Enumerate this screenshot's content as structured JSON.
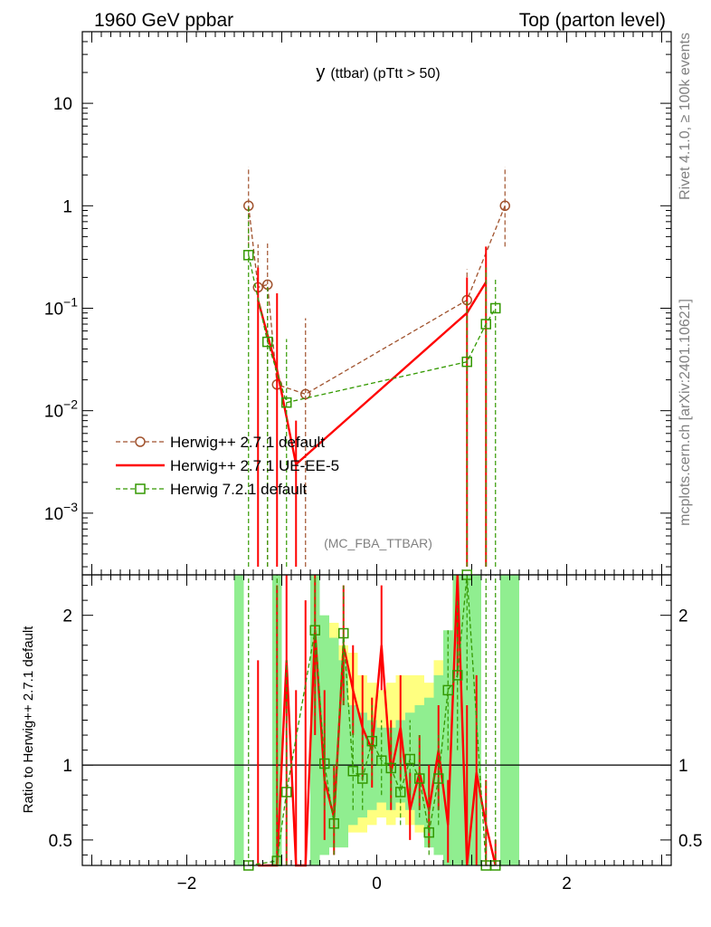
{
  "header": {
    "left": "1960 GeV ppbar",
    "right": "Top (parton level)"
  },
  "side_text": {
    "rivet": "Rivet 4.1.0, ≥ 100k events",
    "mcplots": "mcplots.cern.ch [arXiv:2401.10621]"
  },
  "chart_data": [
    {
      "type": "line",
      "title_main": "y",
      "title_sub": "(ttbar) (pTtt > 50)",
      "watermark": "(MC_FBA_TTBAR)",
      "xlabel": "",
      "ylabel": "",
      "yscale": "log",
      "xlim": [
        -3.1,
        3.1
      ],
      "ylim": [
        0.00025,
        50
      ],
      "x_ticks": [
        -2,
        0,
        2
      ],
      "y_ticks": [
        {
          "value": 10,
          "label": "10"
        },
        {
          "value": 1,
          "label": "1"
        },
        {
          "value": 0.1,
          "label": "10",
          "sup": "−1"
        },
        {
          "value": 0.01,
          "label": "10",
          "sup": "−2"
        },
        {
          "value": 0.001,
          "label": "10",
          "sup": "−3"
        }
      ],
      "legend_position": "left",
      "series": [
        {
          "name": "Herwig++ 2.7.1 default",
          "color": "#a0522d",
          "dash": "dashed",
          "marker": "open-circle",
          "points": [
            {
              "x": -1.35,
              "y": 1.0,
              "err": [
                0.4,
                2.4
              ]
            },
            {
              "x": -1.25,
              "y": 0.16,
              "err": [
                0.0003,
                0.42
              ]
            },
            {
              "x": -1.15,
              "y": 0.17,
              "err": [
                0.0003,
                0.45
              ]
            },
            {
              "x": -1.05,
              "y": 0.018,
              "err": [
                0.0003,
                0.05
              ]
            },
            {
              "x": -0.75,
              "y": 0.0145,
              "err": [
                0.0003,
                0.08
              ]
            },
            {
              "x": 0.95,
              "y": 0.12,
              "err": [
                0.0003,
                0.24
              ]
            },
            {
              "x": 1.35,
              "y": 1.0,
              "err": [
                0.4,
                2.4
              ]
            }
          ]
        },
        {
          "name": "Herwig++ 2.7.1 UE-EE-5",
          "color": "#ff0000",
          "dash": "solid",
          "marker": "none",
          "points": [
            {
              "x": -1.25,
              "y": 0.12,
              "err": [
                0.0003,
                0.25
              ]
            },
            {
              "x": -1.05,
              "y": 0.025,
              "err": [
                0.0003,
                0.14
              ]
            },
            {
              "x": -0.85,
              "y": 0.003,
              "err": [
                0.0003,
                0.008
              ]
            },
            {
              "x": 0.95,
              "y": 0.09,
              "err": [
                0.0003,
                0.2
              ]
            },
            {
              "x": 1.15,
              "y": 0.18,
              "err": [
                0.0003,
                0.4
              ]
            }
          ]
        },
        {
          "name": "Herwig 7.2.1 default",
          "color": "#339900",
          "dash": "dashed",
          "marker": "open-square",
          "points": [
            {
              "x": -1.35,
              "y": 0.33,
              "err": [
                0.0003,
                1.0
              ]
            },
            {
              "x": -1.15,
              "y": 0.047,
              "err": [
                0.0003,
                0.16
              ]
            },
            {
              "x": -0.95,
              "y": 0.012,
              "err": [
                0.0003,
                0.05
              ]
            },
            {
              "x": 0.95,
              "y": 0.03,
              "err": [
                0.0003,
                0.12
              ]
            },
            {
              "x": 1.15,
              "y": 0.07,
              "err": [
                0.0003,
                0.25
              ]
            },
            {
              "x": 1.25,
              "y": 0.1,
              "err": [
                0.0003,
                0.2
              ]
            }
          ]
        }
      ]
    },
    {
      "type": "line",
      "ylabel": "Ratio to Herwig++ 2.7.1 default",
      "xlim": [
        -3.1,
        3.1
      ],
      "ylim": [
        0.33,
        2.27
      ],
      "x_ticks": [
        -2,
        0,
        2
      ],
      "y_ticks": [
        {
          "value": 0.5,
          "label": "0.5"
        },
        {
          "value": 1,
          "label": "1"
        },
        {
          "value": 2,
          "label": "2"
        }
      ],
      "reference_line": 1,
      "bands": [
        {
          "name": "yellow",
          "color": "#ffff80",
          "bins": [
            [
              -1.5,
              0.33,
              2.27
            ],
            [
              -1.1,
              0.33,
              2.27
            ],
            [
              -0.7,
              0.4,
              2.1
            ],
            [
              -0.6,
              0.45,
              1.95
            ],
            [
              -0.5,
              0.5,
              1.95
            ],
            [
              -0.4,
              0.5,
              1.8
            ],
            [
              -0.3,
              0.55,
              1.75
            ],
            [
              -0.2,
              0.55,
              1.6
            ],
            [
              -0.1,
              0.6,
              1.55
            ],
            [
              0.0,
              0.65,
              1.5
            ],
            [
              0.1,
              0.6,
              1.55
            ],
            [
              0.2,
              0.65,
              1.6
            ],
            [
              0.3,
              0.6,
              1.6
            ],
            [
              0.4,
              0.55,
              1.6
            ],
            [
              0.5,
              0.5,
              1.55
            ],
            [
              0.6,
              0.5,
              1.7
            ],
            [
              0.7,
              0.45,
              1.8
            ],
            [
              0.8,
              0.4,
              2.0
            ],
            [
              0.9,
              0.33,
              2.27
            ],
            [
              1.4,
              0.33,
              2.27
            ]
          ]
        },
        {
          "name": "green",
          "color": "#90ee90",
          "bins": [
            [
              -1.5,
              0.33,
              2.27
            ],
            [
              -1.1,
              0.33,
              2.27
            ],
            [
              -0.7,
              0.33,
              2.27
            ],
            [
              -0.6,
              0.4,
              2.0
            ],
            [
              -0.5,
              0.45,
              1.85
            ],
            [
              -0.4,
              0.45,
              1.7
            ],
            [
              -0.3,
              0.6,
              1.4
            ],
            [
              -0.2,
              0.65,
              1.35
            ],
            [
              -0.1,
              0.7,
              1.3
            ],
            [
              0.0,
              0.75,
              1.25
            ],
            [
              0.1,
              0.7,
              1.25
            ],
            [
              0.2,
              0.75,
              1.3
            ],
            [
              0.3,
              0.7,
              1.35
            ],
            [
              0.4,
              0.6,
              1.4
            ],
            [
              0.5,
              0.45,
              1.45
            ],
            [
              0.6,
              0.4,
              1.6
            ],
            [
              0.7,
              0.33,
              1.9
            ],
            [
              0.8,
              0.33,
              2.27
            ],
            [
              0.9,
              0.33,
              2.27
            ],
            [
              1.0,
              0.33,
              2.27
            ],
            [
              1.3,
              0.33,
              2.27
            ],
            [
              1.4,
              0.33,
              2.27
            ]
          ]
        }
      ],
      "series": [
        {
          "name": "Herwig++ 2.7.1 UE-EE-5",
          "color": "#ff0000",
          "dash": "solid",
          "marker": "none",
          "points": [
            {
              "x": -1.25,
              "y": 0.32,
              "err": [
                0.3,
                1.7
              ]
            },
            {
              "x": -1.05,
              "y": 0.32,
              "err": [
                0.3,
                2.2
              ]
            },
            {
              "x": -0.95,
              "y": 1.7,
              "err": [
                0.3,
                2.27
              ]
            },
            {
              "x": -0.85,
              "y": 0.32,
              "err": [
                0.3,
                1.5
              ]
            },
            {
              "x": -0.75,
              "y": 0.32,
              "err": [
                0.3,
                2.1
              ]
            },
            {
              "x": -0.65,
              "y": 1.9,
              "err": [
                1.2,
                2.27
              ]
            },
            {
              "x": -0.55,
              "y": 0.9,
              "err": [
                0.5,
                1.5
              ]
            },
            {
              "x": -0.45,
              "y": 0.65,
              "err": [
                0.4,
                1.0
              ]
            },
            {
              "x": -0.35,
              "y": 1.8,
              "err": [
                1.4,
                2.2
              ]
            },
            {
              "x": -0.25,
              "y": 1.5,
              "err": [
                1.2,
                1.8
              ]
            },
            {
              "x": -0.15,
              "y": 1.25,
              "err": [
                0.9,
                1.6
              ]
            },
            {
              "x": -0.05,
              "y": 1.1,
              "err": [
                0.85,
                1.45
              ]
            },
            {
              "x": 0.05,
              "y": 1.8,
              "err": [
                1.5,
                2.2
              ]
            },
            {
              "x": 0.15,
              "y": 0.95,
              "err": [
                0.7,
                1.3
              ]
            },
            {
              "x": 0.25,
              "y": 1.25,
              "err": [
                0.9,
                1.6
              ]
            },
            {
              "x": 0.35,
              "y": 0.7,
              "err": [
                0.5,
                0.95
              ]
            },
            {
              "x": 0.45,
              "y": 0.95,
              "err": [
                0.7,
                1.2
              ]
            },
            {
              "x": 0.55,
              "y": 0.7,
              "err": [
                0.45,
                1.0
              ]
            },
            {
              "x": 0.65,
              "y": 1.1,
              "err": [
                0.7,
                1.4
              ]
            },
            {
              "x": 0.75,
              "y": 0.6,
              "err": [
                0.35,
                0.9
              ]
            },
            {
              "x": 0.85,
              "y": 2.27,
              "err": [
                1.6,
                2.27
              ]
            },
            {
              "x": 0.95,
              "y": 0.32,
              "err": [
                0.3,
                1.4
              ]
            },
            {
              "x": 1.05,
              "y": 0.95,
              "err": [
                0.3,
                1.6
              ]
            },
            {
              "x": 1.15,
              "y": 0.6,
              "err": [
                0.3,
                0.9
              ]
            },
            {
              "x": 1.25,
              "y": 0.32,
              "err": [
                0.3,
                0.5
              ]
            }
          ]
        },
        {
          "name": "Herwig 7.2.1 default",
          "color": "#339900",
          "dash": "dashed",
          "marker": "open-square",
          "points": [
            {
              "x": -1.35,
              "y": 0.33,
              "err": [
                0.3,
                2.27
              ]
            },
            {
              "x": -1.05,
              "y": 0.36,
              "err": [
                0.3,
                2.27
              ]
            },
            {
              "x": -0.95,
              "y": 0.82,
              "err": [
                0.3,
                1.7
              ]
            },
            {
              "x": -0.65,
              "y": 1.9,
              "err": [
                1.3,
                2.27
              ]
            },
            {
              "x": -0.55,
              "y": 1.01,
              "err": [
                0.7,
                1.3
              ]
            },
            {
              "x": -0.45,
              "y": 0.61,
              "err": [
                0.4,
                1.0
              ]
            },
            {
              "x": -0.35,
              "y": 1.88,
              "err": [
                1.4,
                2.2
              ]
            },
            {
              "x": -0.25,
              "y": 0.96,
              "err": [
                0.7,
                1.3
              ]
            },
            {
              "x": -0.15,
              "y": 0.91,
              "err": [
                0.7,
                1.2
              ]
            },
            {
              "x": -0.05,
              "y": 1.16,
              "err": [
                0.9,
                1.4
              ]
            },
            {
              "x": 0.05,
              "y": 1.03,
              "err": [
                0.8,
                1.3
              ]
            },
            {
              "x": 0.15,
              "y": 0.98,
              "err": [
                0.75,
                1.25
              ]
            },
            {
              "x": 0.25,
              "y": 0.82,
              "err": [
                0.6,
                1.05
              ]
            },
            {
              "x": 0.35,
              "y": 1.04,
              "err": [
                0.8,
                1.3
              ]
            },
            {
              "x": 0.45,
              "y": 0.91,
              "err": [
                0.65,
                1.2
              ]
            },
            {
              "x": 0.55,
              "y": 0.55,
              "err": [
                0.4,
                0.8
              ]
            },
            {
              "x": 0.65,
              "y": 0.91,
              "err": [
                0.6,
                1.2
              ]
            },
            {
              "x": 0.75,
              "y": 1.5,
              "err": [
                1.1,
                1.9
              ]
            },
            {
              "x": 0.85,
              "y": 1.6,
              "err": [
                1.1,
                2.1
              ]
            },
            {
              "x": 0.95,
              "y": 2.27,
              "err": [
                1.5,
                2.27
              ]
            },
            {
              "x": 1.15,
              "y": 0.32,
              "err": [
                0.3,
                2.27
              ]
            },
            {
              "x": 1.25,
              "y": 0.32,
              "err": [
                0.3,
                2.27
              ]
            }
          ]
        }
      ]
    }
  ]
}
